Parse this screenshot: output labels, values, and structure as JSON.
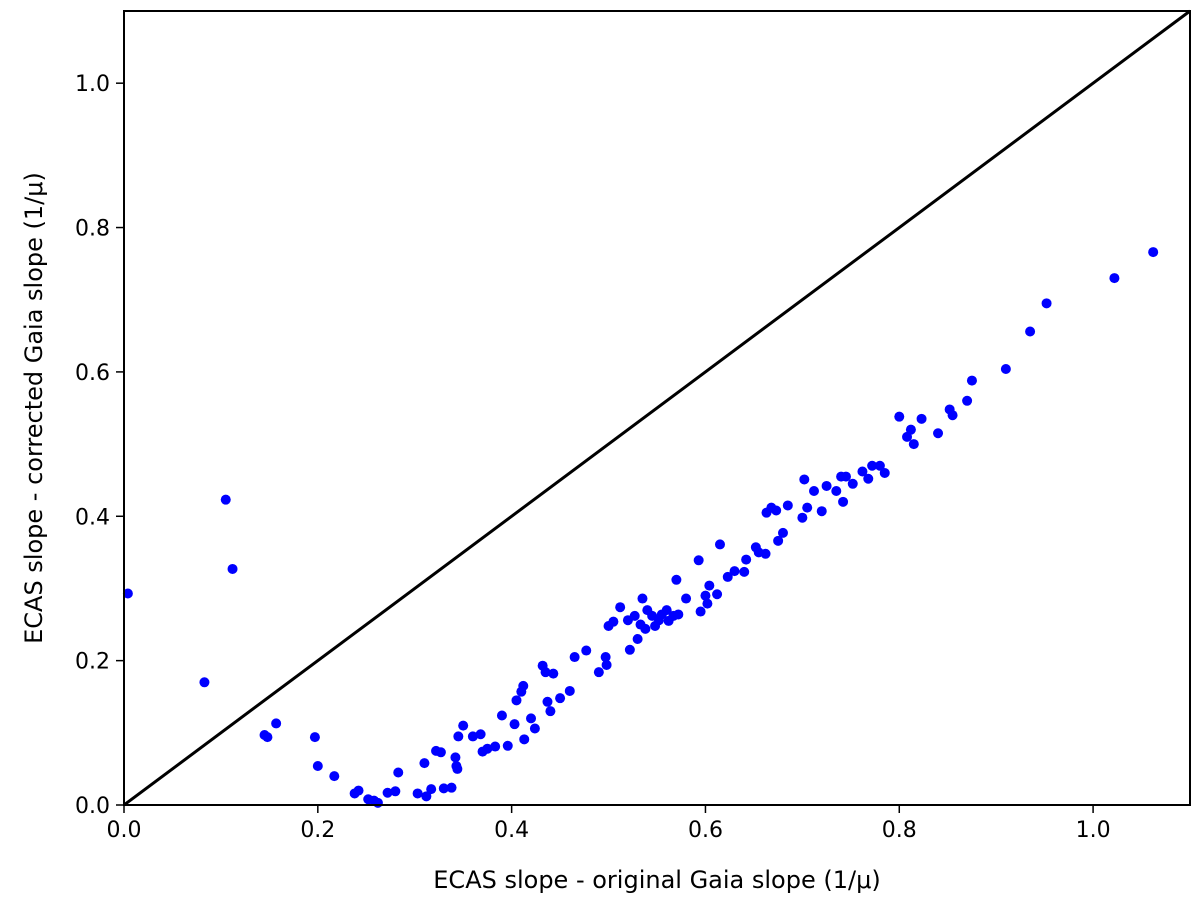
{
  "chart_data": {
    "type": "scatter",
    "title": "",
    "xlabel": "ECAS slope - original Gaia slope (1/μ)",
    "ylabel": "ECAS slope - corrected Gaia slope (1/μ)",
    "xlim": [
      0.0,
      1.1
    ],
    "ylim": [
      0.0,
      1.1
    ],
    "x_ticks": [
      "0.0",
      "0.2",
      "0.4",
      "0.6",
      "0.8",
      "1.0"
    ],
    "y_ticks": [
      "0.0",
      "0.2",
      "0.4",
      "0.6",
      "0.8",
      "1.0"
    ],
    "grid": false,
    "marker_color": "#0000ff",
    "reference_line": {
      "x": [
        0.0,
        1.1
      ],
      "y": [
        0.0,
        1.1
      ],
      "color": "#000000"
    },
    "series": [
      {
        "points": [
          [
            0.004,
            0.293
          ],
          [
            0.083,
            0.17
          ],
          [
            0.105,
            0.423
          ],
          [
            0.112,
            0.327
          ],
          [
            0.145,
            0.097
          ],
          [
            0.148,
            0.094
          ],
          [
            0.157,
            0.113
          ],
          [
            0.197,
            0.094
          ],
          [
            0.2,
            0.054
          ],
          [
            0.217,
            0.04
          ],
          [
            0.238,
            0.016
          ],
          [
            0.242,
            0.02
          ],
          [
            0.252,
            0.008
          ],
          [
            0.258,
            0.006
          ],
          [
            0.262,
            0.003
          ],
          [
            0.272,
            0.017
          ],
          [
            0.28,
            0.019
          ],
          [
            0.283,
            0.045
          ],
          [
            0.303,
            0.016
          ],
          [
            0.31,
            0.058
          ],
          [
            0.312,
            0.012
          ],
          [
            0.317,
            0.022
          ],
          [
            0.322,
            0.075
          ],
          [
            0.327,
            0.073
          ],
          [
            0.33,
            0.023
          ],
          [
            0.338,
            0.024
          ],
          [
            0.342,
            0.066
          ],
          [
            0.343,
            0.054
          ],
          [
            0.344,
            0.05
          ],
          [
            0.345,
            0.095
          ],
          [
            0.35,
            0.11
          ],
          [
            0.36,
            0.095
          ],
          [
            0.368,
            0.098
          ],
          [
            0.37,
            0.074
          ],
          [
            0.375,
            0.078
          ],
          [
            0.383,
            0.081
          ],
          [
            0.39,
            0.124
          ],
          [
            0.396,
            0.082
          ],
          [
            0.403,
            0.112
          ],
          [
            0.405,
            0.145
          ],
          [
            0.41,
            0.157
          ],
          [
            0.412,
            0.165
          ],
          [
            0.413,
            0.091
          ],
          [
            0.42,
            0.12
          ],
          [
            0.424,
            0.106
          ],
          [
            0.432,
            0.193
          ],
          [
            0.435,
            0.184
          ],
          [
            0.437,
            0.143
          ],
          [
            0.44,
            0.13
          ],
          [
            0.443,
            0.182
          ],
          [
            0.45,
            0.148
          ],
          [
            0.46,
            0.158
          ],
          [
            0.465,
            0.205
          ],
          [
            0.477,
            0.214
          ],
          [
            0.49,
            0.184
          ],
          [
            0.497,
            0.205
          ],
          [
            0.498,
            0.194
          ],
          [
            0.5,
            0.248
          ],
          [
            0.505,
            0.254
          ],
          [
            0.512,
            0.274
          ],
          [
            0.52,
            0.256
          ],
          [
            0.522,
            0.215
          ],
          [
            0.527,
            0.262
          ],
          [
            0.53,
            0.23
          ],
          [
            0.533,
            0.25
          ],
          [
            0.535,
            0.286
          ],
          [
            0.538,
            0.244
          ],
          [
            0.54,
            0.27
          ],
          [
            0.545,
            0.262
          ],
          [
            0.548,
            0.248
          ],
          [
            0.552,
            0.256
          ],
          [
            0.555,
            0.264
          ],
          [
            0.56,
            0.27
          ],
          [
            0.562,
            0.255
          ],
          [
            0.567,
            0.262
          ],
          [
            0.57,
            0.312
          ],
          [
            0.572,
            0.264
          ],
          [
            0.58,
            0.286
          ],
          [
            0.593,
            0.339
          ],
          [
            0.595,
            0.268
          ],
          [
            0.6,
            0.29
          ],
          [
            0.602,
            0.279
          ],
          [
            0.604,
            0.304
          ],
          [
            0.612,
            0.292
          ],
          [
            0.615,
            0.361
          ],
          [
            0.623,
            0.316
          ],
          [
            0.63,
            0.324
          ],
          [
            0.64,
            0.323
          ],
          [
            0.642,
            0.34
          ],
          [
            0.652,
            0.357
          ],
          [
            0.655,
            0.35
          ],
          [
            0.662,
            0.348
          ],
          [
            0.663,
            0.405
          ],
          [
            0.668,
            0.412
          ],
          [
            0.673,
            0.408
          ],
          [
            0.675,
            0.366
          ],
          [
            0.68,
            0.377
          ],
          [
            0.685,
            0.415
          ],
          [
            0.7,
            0.398
          ],
          [
            0.702,
            0.451
          ],
          [
            0.705,
            0.412
          ],
          [
            0.712,
            0.435
          ],
          [
            0.72,
            0.407
          ],
          [
            0.725,
            0.442
          ],
          [
            0.735,
            0.435
          ],
          [
            0.74,
            0.455
          ],
          [
            0.742,
            0.42
          ],
          [
            0.745,
            0.455
          ],
          [
            0.752,
            0.445
          ],
          [
            0.762,
            0.462
          ],
          [
            0.768,
            0.452
          ],
          [
            0.772,
            0.47
          ],
          [
            0.78,
            0.47
          ],
          [
            0.785,
            0.46
          ],
          [
            0.8,
            0.538
          ],
          [
            0.808,
            0.51
          ],
          [
            0.812,
            0.52
          ],
          [
            0.815,
            0.5
          ],
          [
            0.823,
            0.535
          ],
          [
            0.84,
            0.515
          ],
          [
            0.852,
            0.548
          ],
          [
            0.855,
            0.54
          ],
          [
            0.87,
            0.56
          ],
          [
            0.875,
            0.588
          ],
          [
            0.91,
            0.604
          ],
          [
            0.935,
            0.656
          ],
          [
            0.952,
            0.695
          ],
          [
            1.022,
            0.73
          ],
          [
            1.062,
            0.766
          ]
        ]
      }
    ]
  }
}
